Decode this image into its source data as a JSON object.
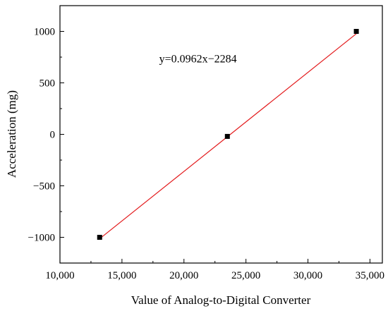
{
  "chart_data": {
    "type": "scatter",
    "title": "",
    "xlabel": "Value of Analog-to-Digital Converter",
    "ylabel": "Acceleration (mg)",
    "xlim": [
      10000,
      36000
    ],
    "ylim": [
      -1250,
      1250
    ],
    "x_ticks": [
      10000,
      15000,
      20000,
      25000,
      30000,
      35000
    ],
    "x_tick_labels": [
      "10,000",
      "15,000",
      "20,000",
      "25,000",
      "30,000",
      "35,000"
    ],
    "y_ticks": [
      -1000,
      -500,
      0,
      500,
      1000
    ],
    "y_tick_labels": [
      "−1000",
      "−500",
      "0",
      "500",
      "1000"
    ],
    "grid": false,
    "series": [
      {
        "points": [
          {
            "x": 13200,
            "y": -1000
          },
          {
            "x": 23500,
            "y": -20
          },
          {
            "x": 33900,
            "y": 1000
          }
        ],
        "marker": "square",
        "color": "#000000"
      }
    ],
    "fit_line": {
      "slope": 0.0962,
      "intercept": -2284,
      "x_range": [
        13200,
        33900
      ],
      "color": "#e31a1c"
    },
    "annotations": [
      {
        "text": "y=0.0962x−2284",
        "x": 18000,
        "y": 700
      }
    ]
  }
}
